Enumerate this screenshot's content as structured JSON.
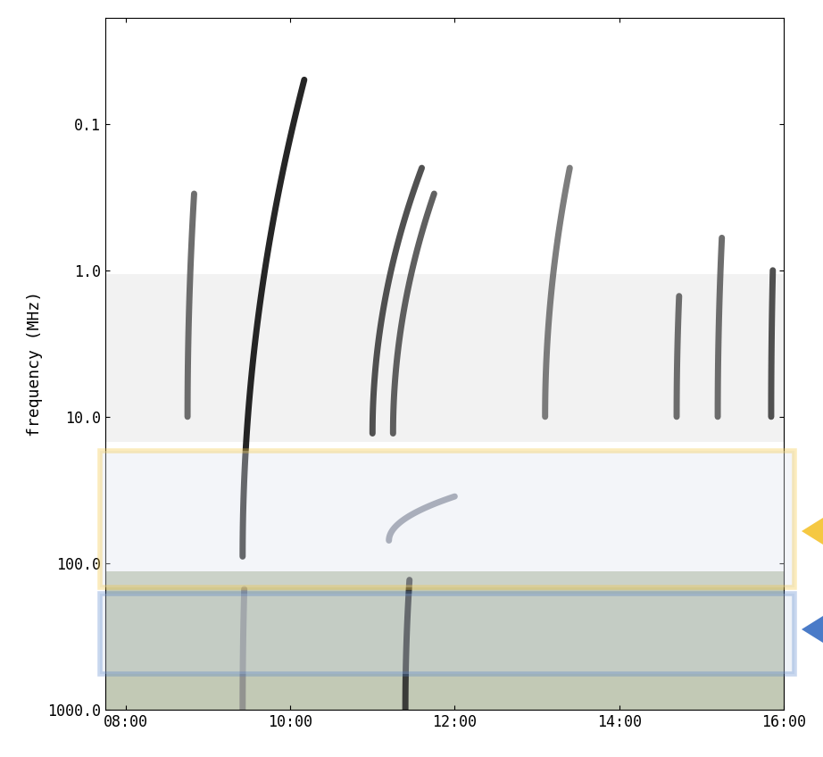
{
  "chart_data": {
    "type": "spectrogram",
    "y_label": "frequency (MHz)",
    "log": "y",
    "xlim": [
      7.75,
      16.0
    ],
    "xticks": [
      {
        "value": 8,
        "label": "08:00"
      },
      {
        "value": 10,
        "label": "10:00"
      },
      {
        "value": 12,
        "label": "12:00"
      },
      {
        "value": 14,
        "label": "14:00"
      },
      {
        "value": 16,
        "label": "16:00"
      }
    ],
    "ylim": [
      1000,
      0.019
    ],
    "yticks": [
      0.1,
      1.0,
      10.0,
      100.0,
      1000.0
    ],
    "bursts": [
      {
        "time": 8.75,
        "f_high": 10,
        "f_low": 0.3,
        "drift": 0.08,
        "color": "#555555"
      },
      {
        "time": 9.42,
        "f_high": 90,
        "f_low": 0.05,
        "drift": 0.75,
        "color": "#000000"
      },
      {
        "time": 9.42,
        "f_high": 1000,
        "f_low": 150,
        "drift": 0.02,
        "color": "#8a8a8a"
      },
      {
        "time": 11.0,
        "f_high": 13,
        "f_low": 0.2,
        "drift": 0.6,
        "color": "#333333"
      },
      {
        "time": 11.25,
        "f_high": 13,
        "f_low": 0.3,
        "drift": 0.5,
        "color": "#444444"
      },
      {
        "time": 11.2,
        "f_high": 70,
        "f_low": 35,
        "drift": 0.8,
        "color": "#7a8090"
      },
      {
        "time": 11.4,
        "f_high": 1000,
        "f_low": 130,
        "drift": 0.05,
        "color": "#222222"
      },
      {
        "time": 13.1,
        "f_high": 10,
        "f_low": 0.2,
        "drift": 0.3,
        "color": "#666666"
      },
      {
        "time": 14.7,
        "f_high": 10,
        "f_low": 1.5,
        "drift": 0.03,
        "color": "#555555"
      },
      {
        "time": 15.2,
        "f_high": 10,
        "f_low": 0.6,
        "drift": 0.05,
        "color": "#555555"
      },
      {
        "time": 15.85,
        "f_high": 10,
        "f_low": 1.0,
        "drift": 0.02,
        "color": "#333333"
      }
    ]
  }
}
